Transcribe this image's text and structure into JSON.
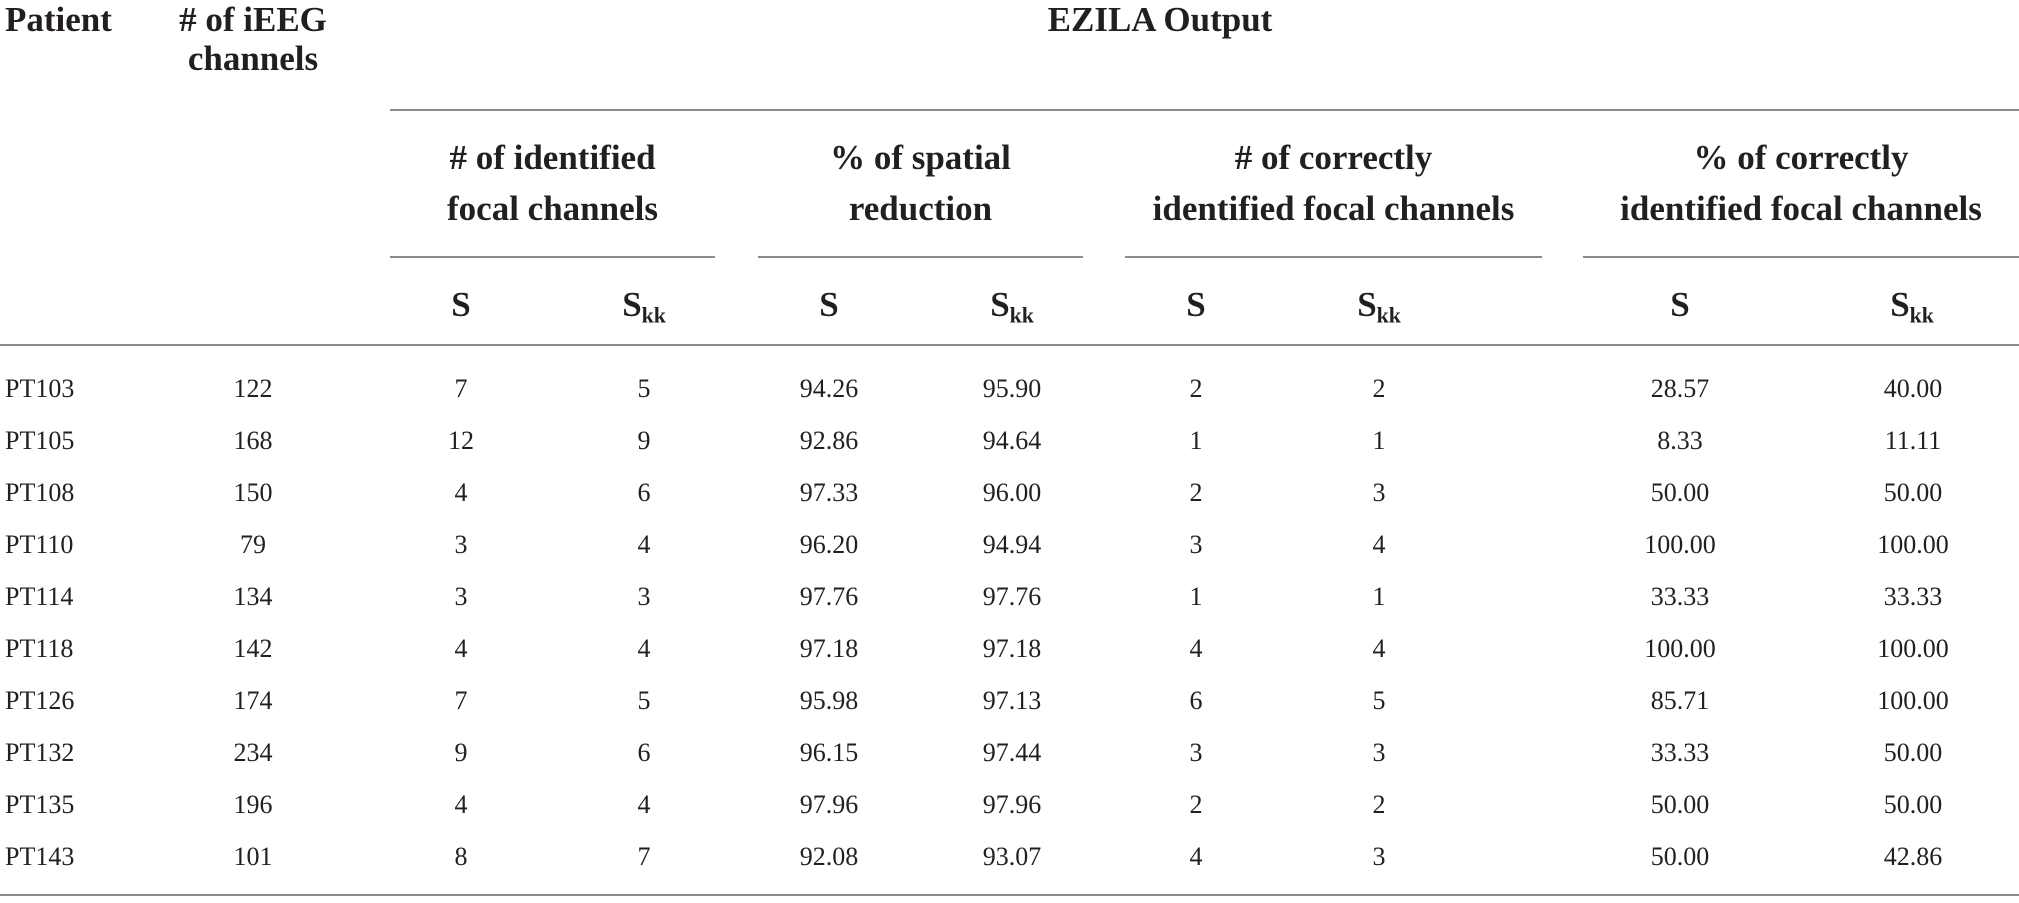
{
  "header": {
    "patient": "Patient",
    "channels_line1": "# of iEEG",
    "channels_line2": "channels",
    "ezila": "EZILA Output",
    "groups": [
      {
        "line1": "# of identified",
        "line2": "focal channels"
      },
      {
        "line1": "% of spatial",
        "line2": "reduction"
      },
      {
        "line1": "# of correctly",
        "line2": "identified focal channels"
      },
      {
        "line1": "% of correctly",
        "line2": "identified focal channels"
      }
    ],
    "sub_s": "S",
    "sub_skk_base": "S",
    "sub_skk_sub": "kk"
  },
  "rows": [
    {
      "patient": "PT103",
      "channels": "122",
      "id_s": "7",
      "id_skk": "5",
      "sr_s": "94.26",
      "sr_skk": "95.90",
      "cn_s": "2",
      "cn_skk": "2",
      "cp_s": "28.57",
      "cp_skk": "40.00"
    },
    {
      "patient": "PT105",
      "channels": "168",
      "id_s": "12",
      "id_skk": "9",
      "sr_s": "92.86",
      "sr_skk": "94.64",
      "cn_s": "1",
      "cn_skk": "1",
      "cp_s": "8.33",
      "cp_skk": "11.11"
    },
    {
      "patient": "PT108",
      "channels": "150",
      "id_s": "4",
      "id_skk": "6",
      "sr_s": "97.33",
      "sr_skk": "96.00",
      "cn_s": "2",
      "cn_skk": "3",
      "cp_s": "50.00",
      "cp_skk": "50.00"
    },
    {
      "patient": "PT110",
      "channels": "79",
      "id_s": "3",
      "id_skk": "4",
      "sr_s": "96.20",
      "sr_skk": "94.94",
      "cn_s": "3",
      "cn_skk": "4",
      "cp_s": "100.00",
      "cp_skk": "100.00"
    },
    {
      "patient": "PT114",
      "channels": "134",
      "id_s": "3",
      "id_skk": "3",
      "sr_s": "97.76",
      "sr_skk": "97.76",
      "cn_s": "1",
      "cn_skk": "1",
      "cp_s": "33.33",
      "cp_skk": "33.33"
    },
    {
      "patient": "PT118",
      "channels": "142",
      "id_s": "4",
      "id_skk": "4",
      "sr_s": "97.18",
      "sr_skk": "97.18",
      "cn_s": "4",
      "cn_skk": "4",
      "cp_s": "100.00",
      "cp_skk": "100.00"
    },
    {
      "patient": "PT126",
      "channels": "174",
      "id_s": "7",
      "id_skk": "5",
      "sr_s": "95.98",
      "sr_skk": "97.13",
      "cn_s": "6",
      "cn_skk": "5",
      "cp_s": "85.71",
      "cp_skk": "100.00"
    },
    {
      "patient": "PT132",
      "channels": "234",
      "id_s": "9",
      "id_skk": "6",
      "sr_s": "96.15",
      "sr_skk": "97.44",
      "cn_s": "3",
      "cn_skk": "3",
      "cp_s": "33.33",
      "cp_skk": "50.00"
    },
    {
      "patient": "PT135",
      "channels": "196",
      "id_s": "4",
      "id_skk": "4",
      "sr_s": "97.96",
      "sr_skk": "97.96",
      "cn_s": "2",
      "cn_skk": "2",
      "cp_s": "50.00",
      "cp_skk": "50.00"
    },
    {
      "patient": "PT143",
      "channels": "101",
      "id_s": "8",
      "id_skk": "7",
      "sr_s": "92.08",
      "sr_skk": "93.07",
      "cn_s": "4",
      "cn_skk": "3",
      "cp_s": "50.00",
      "cp_skk": "42.86"
    }
  ]
}
